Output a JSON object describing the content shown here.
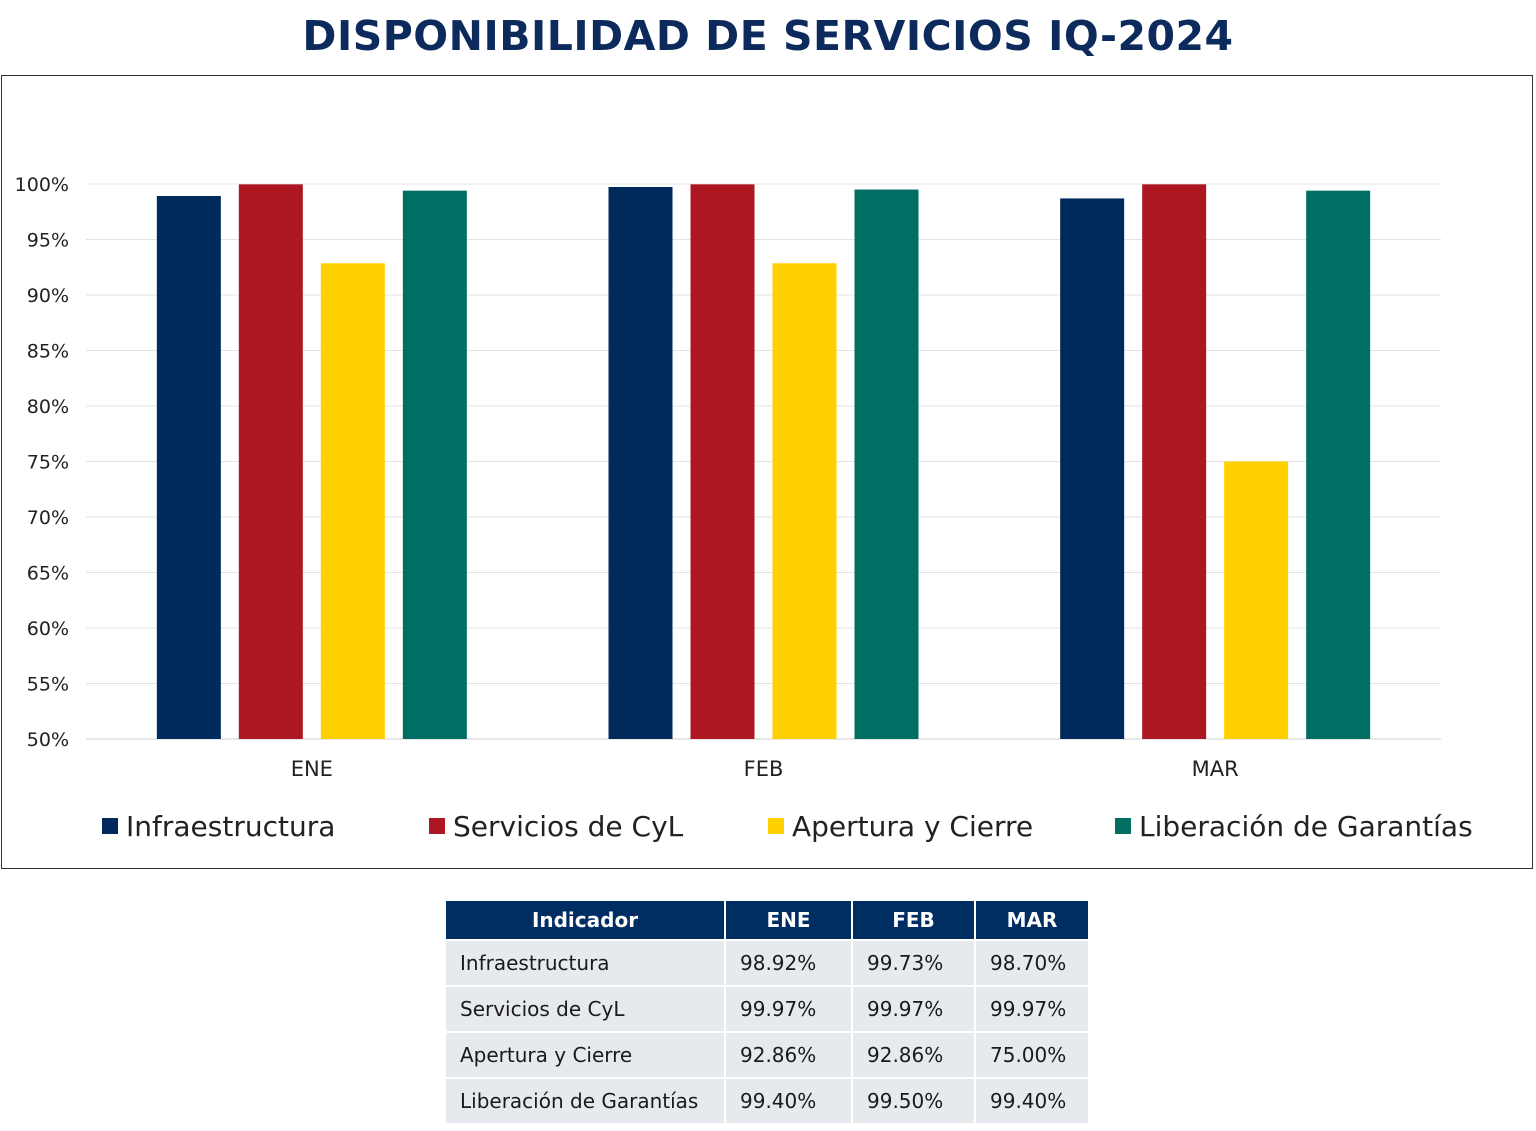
{
  "title": "DISPONIBILIDAD DE SERVICIOS IQ-2024",
  "colors": {
    "infraestructura": "#002a5c",
    "servicios": "#ac1722",
    "apertura": "#ffd100",
    "liberacion": "#006e62"
  },
  "chart_data": {
    "type": "bar",
    "categories": [
      "ENE",
      "FEB",
      "MAR"
    ],
    "ylim": [
      0.5,
      1.0
    ],
    "yticks": [
      0.5,
      0.55,
      0.6,
      0.65,
      0.7,
      0.75,
      0.8,
      0.85,
      0.9,
      0.95,
      1.0
    ],
    "ytick_labels": [
      "50%",
      "55%",
      "60%",
      "65%",
      "70%",
      "75%",
      "80%",
      "85%",
      "90%",
      "95%",
      "100%"
    ],
    "grid": true,
    "legend_position": "bottom",
    "series": [
      {
        "name": "Infraestructura",
        "color": "#002a5c",
        "values": [
          0.9892,
          0.9973,
          0.987
        ]
      },
      {
        "name": "Servicios de CyL",
        "color": "#ac1722",
        "values": [
          0.9997,
          0.9997,
          0.9997
        ]
      },
      {
        "name": "Apertura y Cierre",
        "color": "#ffd100",
        "values": [
          0.9286,
          0.9286,
          0.75
        ]
      },
      {
        "name": "Liberación de Garantías",
        "color": "#006e62",
        "values": [
          0.994,
          0.995,
          0.994
        ]
      }
    ]
  },
  "table": {
    "headers": [
      "Indicador",
      "ENE",
      "FEB",
      "MAR"
    ],
    "rows": [
      [
        "Infraestructura",
        "98.92%",
        "99.73%",
        "98.70%"
      ],
      [
        "Servicios de CyL",
        "99.97%",
        "99.97%",
        "99.97%"
      ],
      [
        "Apertura y Cierre",
        "92.86%",
        "92.86%",
        "75.00%"
      ],
      [
        "Liberación de Garantías",
        "99.40%",
        "99.50%",
        "99.40%"
      ]
    ]
  }
}
